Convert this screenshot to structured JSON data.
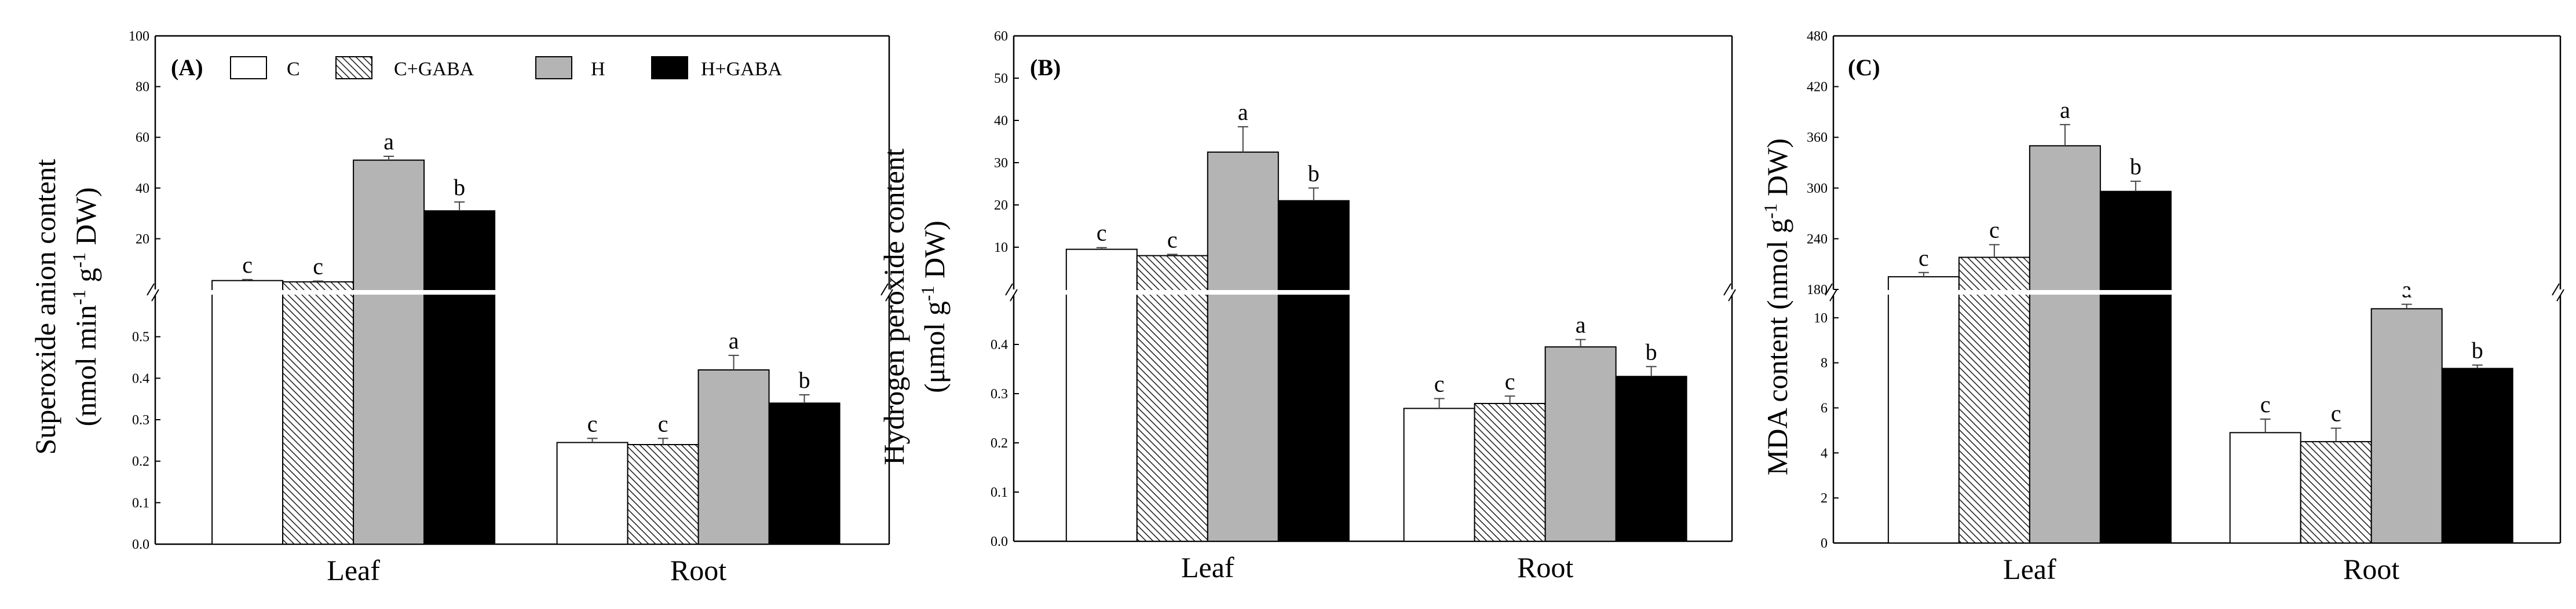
{
  "legend": [
    {
      "label": "C",
      "pattern": "white"
    },
    {
      "label": "C+GABA",
      "pattern": "hatch"
    },
    {
      "label": "H",
      "pattern": "gray"
    },
    {
      "label": "H+GABA",
      "pattern": "black"
    }
  ],
  "colors": {
    "white": "#ffffff",
    "gray": "#b4b4b4",
    "black": "#000000",
    "axis": "#000000"
  },
  "chart_data": [
    {
      "type": "bar",
      "panel": "(A)",
      "ylabel_line1": "Superoxide anion content",
      "ylabel_line2": "(nmol min",
      "ylabel_sup1": "-1",
      "ylabel_mid": " g",
      "ylabel_sup2": "-1",
      "ylabel_end": " DW)",
      "categories": [
        "Leaf",
        "Root"
      ],
      "axis_break": true,
      "lower_axis": {
        "range": [
          0,
          0.6
        ],
        "ticks": [
          "0.0",
          "0.1",
          "0.2",
          "0.3",
          "0.4",
          "0.5"
        ]
      },
      "upper_axis": {
        "range": [
          0,
          100
        ],
        "ticks": [
          "20",
          "40",
          "60",
          "80",
          "100"
        ]
      },
      "groups": [
        {
          "category": "Leaf",
          "segment": "upper",
          "values": [
            3.5,
            3.0,
            51,
            31
          ],
          "errors": [
            0.4,
            0.3,
            1.5,
            3.5
          ],
          "letters": [
            "c",
            "c",
            "a",
            "b"
          ]
        },
        {
          "category": "Root",
          "segment": "lower",
          "values": [
            0.245,
            0.24,
            0.42,
            0.34
          ],
          "errors": [
            0.01,
            0.015,
            0.035,
            0.02
          ],
          "letters": [
            "c",
            "c",
            "a",
            "b"
          ]
        }
      ]
    },
    {
      "type": "bar",
      "panel": "(B)",
      "ylabel_line1": "Hydrogen peroxide content",
      "ylabel_line2": "(μmol g",
      "ylabel_sup1": "-1",
      "ylabel_mid": "",
      "ylabel_sup2": "",
      "ylabel_end": " DW)",
      "categories": [
        "Leaf",
        "Root"
      ],
      "axis_break": true,
      "lower_axis": {
        "range": [
          0,
          0.5
        ],
        "ticks": [
          "0.0",
          "0.1",
          "0.2",
          "0.3",
          "0.4"
        ]
      },
      "upper_axis": {
        "range": [
          0,
          60
        ],
        "ticks": [
          "10",
          "20",
          "30",
          "40",
          "50",
          "60"
        ]
      },
      "groups": [
        {
          "category": "Leaf",
          "segment": "upper",
          "values": [
            9.5,
            8.0,
            32.5,
            21
          ],
          "errors": [
            0.4,
            0.3,
            6,
            3
          ],
          "letters": [
            "c",
            "c",
            "a",
            "b"
          ]
        },
        {
          "category": "Root",
          "segment": "lower",
          "values": [
            0.27,
            0.28,
            0.395,
            0.335
          ],
          "errors": [
            0.02,
            0.015,
            0.015,
            0.02
          ],
          "letters": [
            "c",
            "c",
            "a",
            "b"
          ]
        }
      ]
    },
    {
      "type": "bar",
      "panel": "(C)",
      "ylabel_line1": "MDA content (nmol g",
      "ylabel_line2": "",
      "ylabel_sup1": "-1",
      "ylabel_mid": "",
      "ylabel_sup2": "",
      "ylabel_end": " DW)",
      "categories": [
        "Leaf",
        "Root"
      ],
      "axis_break": true,
      "lower_axis": {
        "range": [
          0,
          11
        ],
        "ticks": [
          "0",
          "2",
          "4",
          "6",
          "8",
          "10"
        ]
      },
      "upper_axis": {
        "range": [
          180,
          480
        ],
        "ticks": [
          "180",
          "240",
          "300",
          "360",
          "420",
          "480"
        ]
      },
      "groups": [
        {
          "category": "Leaf",
          "segment": "upper",
          "values": [
            195,
            218,
            350,
            296
          ],
          "errors": [
            5,
            15,
            25,
            12
          ],
          "letters": [
            "c",
            "c",
            "a",
            "b"
          ]
        },
        {
          "category": "Root",
          "segment": "lower",
          "values": [
            4.9,
            4.5,
            10.4,
            7.75
          ],
          "errors": [
            0.6,
            0.6,
            0.2,
            0.15
          ],
          "letters": [
            "c",
            "c",
            "a",
            "b"
          ]
        }
      ]
    }
  ]
}
